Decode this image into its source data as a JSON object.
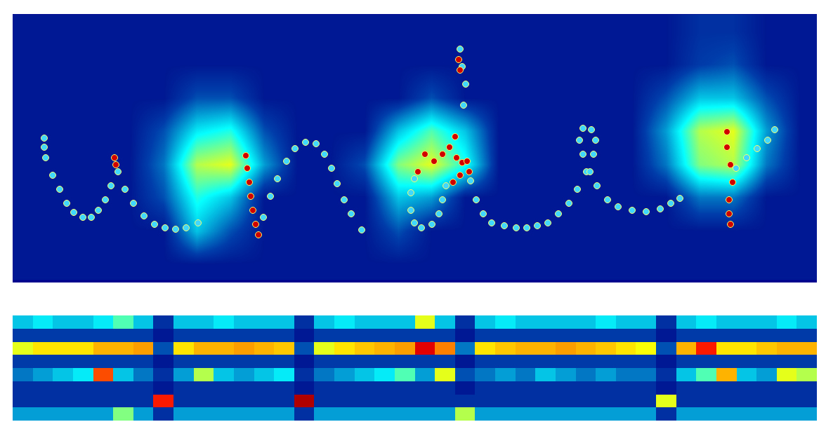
{
  "chart_data": [
    {
      "type": "scatter",
      "xlim": [
        0,
        1145
      ],
      "ylim": [
        383,
        0
      ],
      "tick_labels": false,
      "grid": false,
      "density": {
        "x": [
          24,
          72,
          119,
          167,
          215,
          262,
          310,
          358,
          405,
          453,
          501,
          549,
          596,
          644,
          692,
          739,
          787,
          835,
          882,
          930,
          978,
          1026,
          1073,
          1121
        ],
        "y": [
          24,
          71,
          119,
          166,
          214,
          261,
          309,
          356
        ],
        "zlim": [
          0,
          1
        ],
        "z": [
          [
            0.05,
            0.05,
            0.05,
            0.05,
            0.05,
            0.05,
            0.05,
            0.05,
            0.05,
            0.05,
            0.05,
            0.05,
            0.05,
            0.05,
            0.05,
            0.05,
            0.05,
            0.05,
            0.05,
            0.05,
            0.1,
            0.1,
            0.05,
            0.05
          ],
          [
            0.05,
            0.05,
            0.05,
            0.05,
            0.05,
            0.05,
            0.05,
            0.05,
            0.05,
            0.05,
            0.05,
            0.05,
            0.05,
            0.05,
            0.05,
            0.05,
            0.05,
            0.05,
            0.05,
            0.05,
            0.12,
            0.15,
            0.05,
            0.05
          ],
          [
            0.05,
            0.05,
            0.05,
            0.05,
            0.05,
            0.15,
            0.15,
            0.05,
            0.05,
            0.05,
            0.05,
            0.05,
            0.15,
            0.05,
            0.05,
            0.05,
            0.05,
            0.05,
            0.05,
            0.15,
            0.3,
            0.3,
            0.15,
            0.05
          ],
          [
            0.05,
            0.05,
            0.05,
            0.05,
            0.15,
            0.35,
            0.4,
            0.15,
            0.05,
            0.05,
            0.05,
            0.3,
            0.45,
            0.3,
            0.05,
            0.05,
            0.05,
            0.05,
            0.05,
            0.25,
            0.55,
            0.6,
            0.25,
            0.05
          ],
          [
            0.05,
            0.05,
            0.05,
            0.05,
            0.2,
            0.55,
            0.6,
            0.25,
            0.05,
            0.05,
            0.15,
            0.5,
            0.6,
            0.4,
            0.05,
            0.05,
            0.05,
            0.05,
            0.05,
            0.2,
            0.5,
            0.55,
            0.2,
            0.05
          ],
          [
            0.05,
            0.05,
            0.05,
            0.05,
            0.15,
            0.4,
            0.3,
            0.05,
            0.05,
            0.05,
            0.05,
            0.3,
            0.25,
            0.05,
            0.05,
            0.05,
            0.05,
            0.05,
            0.05,
            0.05,
            0.2,
            0.2,
            0.05,
            0.05
          ],
          [
            0.05,
            0.05,
            0.05,
            0.05,
            0.05,
            0.3,
            0.15,
            0.05,
            0.05,
            0.05,
            0.05,
            0.15,
            0.05,
            0.05,
            0.05,
            0.05,
            0.05,
            0.05,
            0.05,
            0.05,
            0.05,
            0.05,
            0.05,
            0.05
          ],
          [
            0.05,
            0.05,
            0.05,
            0.05,
            0.05,
            0.05,
            0.05,
            0.05,
            0.05,
            0.05,
            0.05,
            0.05,
            0.05,
            0.05,
            0.05,
            0.05,
            0.05,
            0.05,
            0.05,
            0.05,
            0.05,
            0.05,
            0.05,
            0.05
          ]
        ]
      },
      "series": [
        {
          "color": "#40d8ff",
          "marker": "circle",
          "x": [
            45,
            45,
            47,
            57,
            67,
            77,
            87,
            100,
            112,
            122,
            132,
            140,
            150,
            160,
            172,
            187,
            202,
            217,
            232,
            247,
            264,
            357,
            367,
            377,
            390,
            402,
            417,
            432,
            444,
            454,
            462,
            472,
            482,
            497,
            572,
            567,
            567,
            572,
            582,
            597,
            607,
            612,
            617,
            642,
            645,
            640,
            637,
            652,
            660,
            670,
            682,
            700,
            717,
            732,
            747,
            762,
            777,
            792,
            804,
            817,
            827,
            830,
            824,
            812,
            807,
            812,
            822,
            832,
            847,
            862,
            882,
            902,
            922,
            937,
            950,
            1030,
            1045,
            1060,
            1075,
            1085
          ],
          "y": [
            177,
            190,
            205,
            230,
            250,
            270,
            283,
            290,
            290,
            280,
            265,
            245,
            225,
            250,
            270,
            288,
            300,
            305,
            307,
            305,
            298,
            290,
            260,
            235,
            210,
            192,
            183,
            185,
            200,
            220,
            242,
            265,
            285,
            308,
            235,
            255,
            280,
            298,
            305,
            300,
            285,
            265,
            245,
            130,
            100,
            75,
            50,
            238,
            265,
            285,
            298,
            302,
            305,
            305,
            302,
            298,
            285,
            270,
            250,
            225,
            200,
            180,
            165,
            163,
            180,
            200,
            225,
            245,
            265,
            275,
            280,
            282,
            278,
            270,
            263,
            220,
            205,
            192,
            180,
            165
          ]
        },
        {
          "color": "#d00000",
          "marker": "circle",
          "x": [
            145,
            147,
            332,
            334,
            337,
            339,
            342,
            346,
            350,
            577,
            587,
            600,
            612,
            622,
            630,
            632,
            640,
            647,
            650,
            637,
            627,
            635,
            637,
            1017,
            1017,
            1022,
            1025,
            1020,
            1020,
            1022
          ],
          "y": [
            205,
            215,
            202,
            220,
            240,
            260,
            280,
            300,
            315,
            225,
            200,
            210,
            200,
            190,
            175,
            205,
            212,
            210,
            225,
            230,
            240,
            65,
            80,
            168,
            190,
            215,
            240,
            265,
            285,
            300
          ]
        }
      ]
    },
    {
      "type": "heatmap",
      "xlim": [
        -0.5,
        39.5
      ],
      "ylim": [
        7.5,
        -0.5
      ],
      "tick_labels": false,
      "grid": false,
      "zlim": [
        0,
        1
      ],
      "z": [
        [
          0.3,
          0.35,
          0.3,
          0.3,
          0.35,
          0.45,
          0.3,
          0.1,
          0.3,
          0.3,
          0.35,
          0.3,
          0.3,
          0.3,
          0.1,
          0.3,
          0.35,
          0.3,
          0.3,
          0.3,
          0.6,
          0.3,
          0.1,
          0.3,
          0.35,
          0.3,
          0.3,
          0.3,
          0.3,
          0.35,
          0.3,
          0.3,
          0.1,
          0.3,
          0.35,
          0.3,
          0.3,
          0.3,
          0.35,
          0.3
        ],
        [
          0.12,
          0.12,
          0.12,
          0.12,
          0.12,
          0.12,
          0.12,
          0.05,
          0.12,
          0.12,
          0.12,
          0.12,
          0.12,
          0.12,
          0.05,
          0.12,
          0.12,
          0.12,
          0.12,
          0.12,
          0.12,
          0.12,
          0.05,
          0.12,
          0.12,
          0.12,
          0.12,
          0.12,
          0.12,
          0.12,
          0.12,
          0.12,
          0.05,
          0.12,
          0.12,
          0.12,
          0.12,
          0.12,
          0.12,
          0.12
        ],
        [
          0.6,
          0.65,
          0.65,
          0.65,
          0.7,
          0.7,
          0.72,
          0.15,
          0.65,
          0.7,
          0.7,
          0.72,
          0.7,
          0.68,
          0.15,
          0.6,
          0.65,
          0.68,
          0.7,
          0.72,
          0.9,
          0.75,
          0.2,
          0.65,
          0.68,
          0.7,
          0.7,
          0.72,
          0.7,
          0.68,
          0.65,
          0.62,
          0.15,
          0.7,
          0.85,
          0.65,
          0.65,
          0.68,
          0.7,
          0.7
        ],
        [
          0.12,
          0.12,
          0.12,
          0.12,
          0.12,
          0.12,
          0.12,
          0.05,
          0.12,
          0.12,
          0.12,
          0.12,
          0.12,
          0.12,
          0.05,
          0.12,
          0.12,
          0.12,
          0.12,
          0.12,
          0.12,
          0.12,
          0.05,
          0.12,
          0.12,
          0.12,
          0.12,
          0.12,
          0.12,
          0.12,
          0.12,
          0.12,
          0.05,
          0.12,
          0.12,
          0.12,
          0.12,
          0.12,
          0.12,
          0.12
        ],
        [
          0.2,
          0.25,
          0.3,
          0.35,
          0.8,
          0.3,
          0.2,
          0.1,
          0.25,
          0.55,
          0.3,
          0.25,
          0.3,
          0.35,
          0.1,
          0.2,
          0.25,
          0.3,
          0.35,
          0.45,
          0.25,
          0.6,
          0.15,
          0.2,
          0.25,
          0.2,
          0.3,
          0.25,
          0.2,
          0.25,
          0.2,
          0.2,
          0.1,
          0.3,
          0.45,
          0.7,
          0.3,
          0.25,
          0.6,
          0.55
        ],
        [
          0.1,
          0.1,
          0.1,
          0.1,
          0.1,
          0.1,
          0.1,
          0.05,
          0.1,
          0.1,
          0.1,
          0.1,
          0.1,
          0.1,
          0.05,
          0.1,
          0.1,
          0.1,
          0.1,
          0.1,
          0.1,
          0.1,
          0.05,
          0.1,
          0.1,
          0.1,
          0.1,
          0.1,
          0.1,
          0.1,
          0.1,
          0.1,
          0.05,
          0.1,
          0.1,
          0.1,
          0.1,
          0.1,
          0.1,
          0.1
        ],
        [
          0.1,
          0.1,
          0.1,
          0.1,
          0.1,
          0.1,
          0.1,
          0.85,
          0.1,
          0.1,
          0.1,
          0.1,
          0.1,
          0.1,
          0.95,
          0.1,
          0.1,
          0.1,
          0.1,
          0.1,
          0.1,
          0.1,
          0.1,
          0.1,
          0.1,
          0.1,
          0.1,
          0.1,
          0.1,
          0.1,
          0.1,
          0.1,
          0.6,
          0.1,
          0.1,
          0.1,
          0.1,
          0.1,
          0.1,
          0.1
        ],
        [
          0.25,
          0.25,
          0.25,
          0.25,
          0.25,
          0.5,
          0.25,
          0.1,
          0.25,
          0.25,
          0.25,
          0.25,
          0.25,
          0.25,
          0.1,
          0.25,
          0.25,
          0.25,
          0.25,
          0.25,
          0.25,
          0.25,
          0.55,
          0.25,
          0.25,
          0.25,
          0.25,
          0.25,
          0.25,
          0.25,
          0.25,
          0.25,
          0.1,
          0.25,
          0.25,
          0.25,
          0.25,
          0.25,
          0.25,
          0.25
        ]
      ]
    }
  ]
}
